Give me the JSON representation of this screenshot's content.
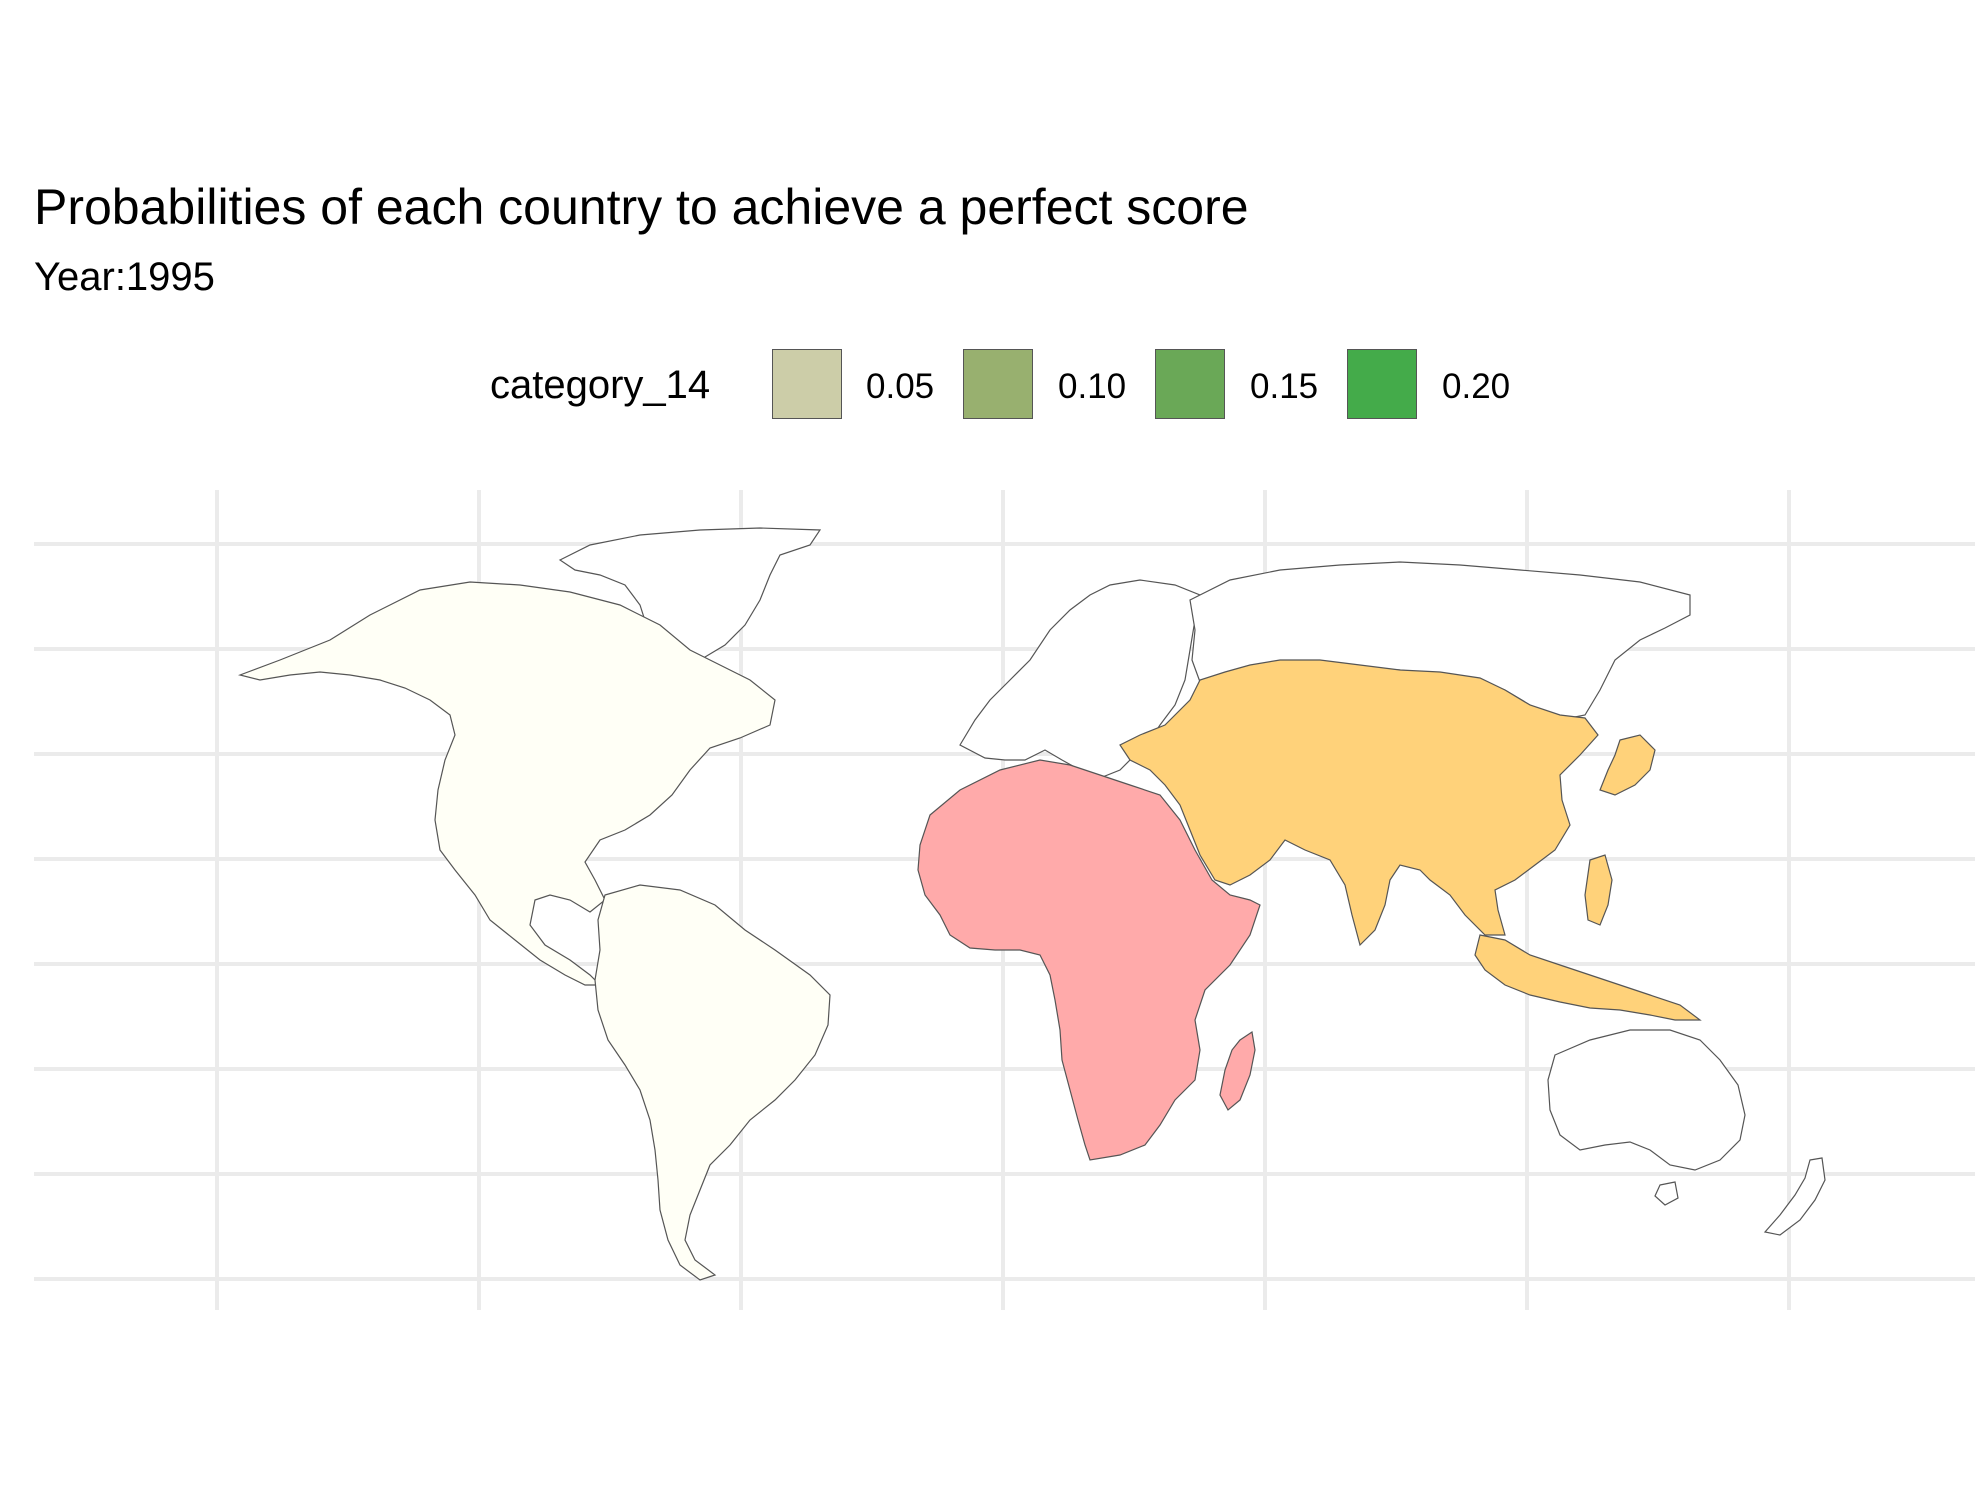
{
  "title": "Probabilities of each country to achieve a perfect score",
  "subtitle": "Year:1995",
  "legend": {
    "title": "category_14",
    "items": [
      {
        "label": "0.05",
        "color": "#cccda8"
      },
      {
        "label": "0.10",
        "color": "#98b06f"
      },
      {
        "label": "0.15",
        "color": "#6aa857"
      },
      {
        "label": "0.20",
        "color": "#44ab4a"
      }
    ]
  },
  "regions": [
    {
      "name": "americas",
      "color": "#fffff6"
    },
    {
      "name": "africa",
      "color": "#ffaaaa"
    },
    {
      "name": "asia",
      "color": "#ffd27a"
    },
    {
      "name": "europe-oceania",
      "color": "#ffffff"
    }
  ]
}
